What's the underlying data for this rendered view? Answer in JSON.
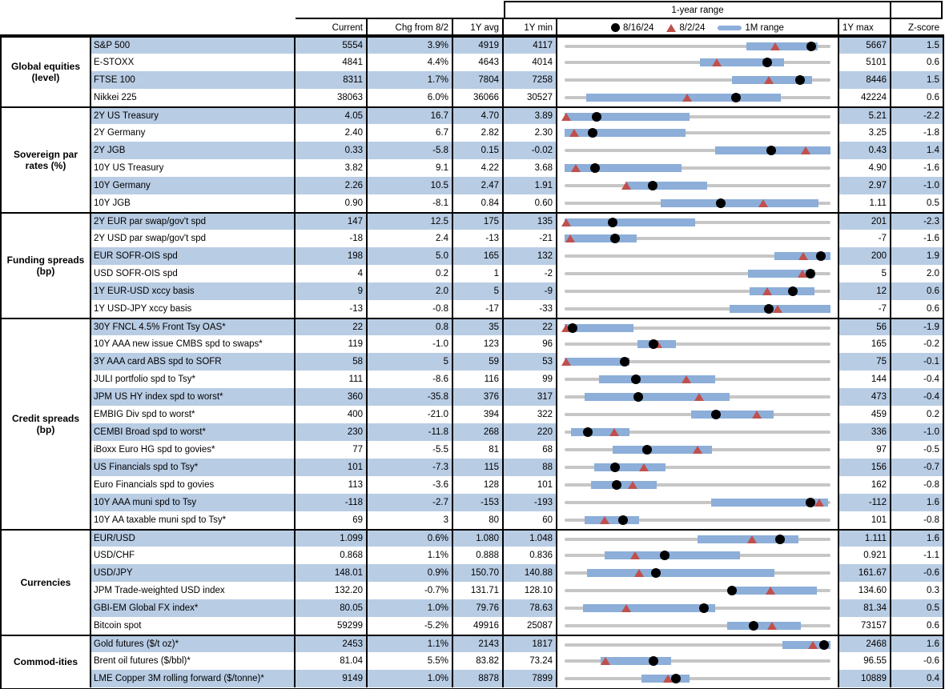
{
  "colors": {
    "row_shade": "#b8cce4",
    "bar": "#8caed9",
    "triangle": "#c0504d",
    "track": "#c6c6c6",
    "dot": "#000000",
    "border": "#000000"
  },
  "header": {
    "range_title": "1-year range",
    "current": "Current",
    "chg": "Chg from 8/2",
    "avg": "1Y avg",
    "min": "1Y min",
    "max": "1Y max",
    "z": "Z-score",
    "legend": {
      "dot": "8/16/24",
      "tri": "8/2/24",
      "bar": "1M range"
    }
  },
  "chart_data": {
    "type": "table",
    "title": "Market levels, spreads and 1-year ranges",
    "columns": [
      "Current",
      "Chg from 8/2",
      "1Y avg",
      "1Y min",
      "1-year range",
      "1Y max",
      "Z-score"
    ],
    "range_legend": [
      "8/16/24 (dot)",
      "8/2/24 (triangle)",
      "1M range (bar)"
    ],
    "sections": [
      {
        "label": "Global equities (level)",
        "rows": [
          {
            "name": "S&P 500",
            "current": "5554",
            "chg": "3.9%",
            "avg": "4919",
            "min": "4117",
            "max": "5667",
            "z": "1.5",
            "range": {
              "bar": [
                0.685,
                0.953
              ],
              "tri": 0.792,
              "dot": 0.927
            }
          },
          {
            "name": "E-STOXX",
            "current": "4841",
            "chg": "4.4%",
            "avg": "4643",
            "min": "4014",
            "max": "5101",
            "z": "0.6",
            "range": {
              "bar": [
                0.51,
                0.825
              ],
              "tri": 0.573,
              "dot": 0.761
            }
          },
          {
            "name": "FTSE 100",
            "current": "8311",
            "chg": "1.7%",
            "avg": "7804",
            "min": "7258",
            "max": "8446",
            "z": "1.5",
            "range": {
              "bar": [
                0.63,
                0.93
              ],
              "tri": 0.769,
              "dot": 0.886
            }
          },
          {
            "name": "Nikkei 225",
            "current": "38063",
            "chg": "6.0%",
            "avg": "36066",
            "min": "30527",
            "max": "42224",
            "z": "0.6",
            "range": {
              "bar": [
                0.08,
                0.813
              ],
              "tri": 0.46,
              "dot": 0.644
            }
          }
        ]
      },
      {
        "label": "Sovereign par rates (%)",
        "rows": [
          {
            "name": "2Y US Treasury",
            "current": "4.05",
            "chg": "16.7",
            "avg": "4.70",
            "min": "3.89",
            "max": "5.21",
            "z": "-2.2",
            "range": {
              "bar": [
                0.0,
                0.47
              ],
              "tri": 0.005,
              "dot": 0.121
            }
          },
          {
            "name": "2Y Germany",
            "current": "2.40",
            "chg": "6.7",
            "avg": "2.82",
            "min": "2.30",
            "max": "3.25",
            "z": "-1.8",
            "range": {
              "bar": [
                0.0,
                0.455
              ],
              "tri": 0.035,
              "dot": 0.105
            }
          },
          {
            "name": "2Y JGB",
            "current": "0.33",
            "chg": "-5.8",
            "avg": "0.15",
            "min": "-0.02",
            "max": "0.43",
            "z": "1.4",
            "range": {
              "bar": [
                0.565,
                1.0
              ],
              "tri": 0.907,
              "dot": 0.778
            }
          },
          {
            "name": "10Y US Treasury",
            "current": "3.82",
            "chg": "9.1",
            "avg": "4.22",
            "min": "3.68",
            "max": "4.90",
            "z": "-1.6",
            "range": {
              "bar": [
                0.0,
                0.44
              ],
              "tri": 0.041,
              "dot": 0.115
            }
          },
          {
            "name": "10Y Germany",
            "current": "2.26",
            "chg": "10.5",
            "avg": "2.47",
            "min": "1.91",
            "max": "2.97",
            "z": "-1.0",
            "range": {
              "bar": [
                0.23,
                0.535
              ],
              "tri": 0.231,
              "dot": 0.33
            }
          },
          {
            "name": "10Y JGB",
            "current": "0.90",
            "chg": "-8.1",
            "avg": "0.84",
            "min": "0.60",
            "max": "1.11",
            "z": "0.5",
            "range": {
              "bar": [
                0.36,
                0.955
              ],
              "tri": 0.747,
              "dot": 0.588
            }
          }
        ]
      },
      {
        "label": "Funding spreads (bp)",
        "rows": [
          {
            "name": "2Y EUR par swap/gov't spd",
            "current": "147",
            "chg": "12.5",
            "avg": "175",
            "min": "135",
            "max": "201",
            "z": "-2.3",
            "range": {
              "bar": [
                0.0,
                0.49
              ],
              "tri": 0.005,
              "dot": 0.182
            }
          },
          {
            "name": "2Y USD par swap/gov't spd",
            "current": "-18",
            "chg": "2.4",
            "avg": "-13",
            "min": "-21",
            "max": "-7",
            "z": "-1.6",
            "range": {
              "bar": [
                0.0,
                0.27
              ],
              "tri": 0.02,
              "dot": 0.19
            }
          },
          {
            "name": "EUR SOFR-OIS spd",
            "current": "198",
            "chg": "5.0",
            "avg": "165",
            "min": "132",
            "max": "200",
            "z": "1.9",
            "range": {
              "bar": [
                0.79,
                1.0
              ],
              "tri": 0.897,
              "dot": 0.965
            }
          },
          {
            "name": "USD SOFR-OIS spd",
            "current": "4",
            "chg": "0.2",
            "avg": "1",
            "min": "-2",
            "max": "5",
            "z": "2.0",
            "range": {
              "bar": [
                0.69,
                0.94
              ],
              "tri": 0.895,
              "dot": 0.925
            }
          },
          {
            "name": "1Y EUR-USD xccy basis",
            "current": "9",
            "chg": "2.0",
            "avg": "5",
            "min": "-9",
            "max": "12",
            "z": "0.6",
            "range": {
              "bar": [
                0.695,
                0.94
              ],
              "tri": 0.762,
              "dot": 0.857
            }
          },
          {
            "name": "1Y USD-JPY xccy basis",
            "current": "-13",
            "chg": "-0.8",
            "avg": "-17",
            "min": "-33",
            "max": "-7",
            "z": "0.6",
            "range": {
              "bar": [
                0.62,
                1.0
              ],
              "tri": 0.8,
              "dot": 0.769
            }
          }
        ]
      },
      {
        "label": "Credit spreads (bp)",
        "rows": [
          {
            "name": "30Y FNCL 4.5% Front Tsy OAS*",
            "current": "22",
            "chg": "0.8",
            "avg": "35",
            "min": "22",
            "max": "56",
            "z": "-1.9",
            "range": {
              "bar": [
                0.0,
                0.26
              ],
              "tri": 0.005,
              "dot": 0.03
            }
          },
          {
            "name": "10Y AAA new issue CMBS spd to swaps*",
            "current": "119",
            "chg": "-1.0",
            "avg": "123",
            "min": "96",
            "max": "165",
            "z": "-0.2",
            "range": {
              "bar": [
                0.275,
                0.42
              ],
              "tri": 0.348,
              "dot": 0.333
            }
          },
          {
            "name": "3Y AAA card ABS spd to SOFR",
            "current": "58",
            "chg": "5",
            "avg": "59",
            "min": "53",
            "max": "75",
            "z": "-0.1",
            "range": {
              "bar": [
                0.0,
                0.245
              ],
              "tri": 0.005,
              "dot": 0.227
            }
          },
          {
            "name": "JULI portfolio spd to Tsy*",
            "current": "111",
            "chg": "-8.6",
            "avg": "116",
            "min": "99",
            "max": "144",
            "z": "-0.4",
            "range": {
              "bar": [
                0.13,
                0.565
              ],
              "tri": 0.458,
              "dot": 0.267
            }
          },
          {
            "name": "JPM US HY index spd to worst*",
            "current": "360",
            "chg": "-35.8",
            "avg": "376",
            "min": "317",
            "max": "473",
            "z": "-0.4",
            "range": {
              "bar": [
                0.075,
                0.62
              ],
              "tri": 0.505,
              "dot": 0.276
            }
          },
          {
            "name": "EMBIG Div spd to worst*",
            "current": "400",
            "chg": "-21.0",
            "avg": "394",
            "min": "322",
            "max": "459",
            "z": "0.2",
            "range": {
              "bar": [
                0.475,
                0.785
              ],
              "tri": 0.723,
              "dot": 0.569
            }
          },
          {
            "name": "CEMBI Broad spd to worst*",
            "current": "230",
            "chg": "-11.8",
            "avg": "268",
            "min": "220",
            "max": "336",
            "z": "-1.0",
            "range": {
              "bar": [
                0.025,
                0.245
              ],
              "tri": 0.188,
              "dot": 0.086
            }
          },
          {
            "name": "iBoxx Euro HG spd to govies*",
            "current": "77",
            "chg": "-5.5",
            "avg": "81",
            "min": "68",
            "max": "97",
            "z": "-0.5",
            "range": {
              "bar": [
                0.18,
                0.555
              ],
              "tri": 0.5,
              "dot": 0.31
            }
          },
          {
            "name": "US Financials spd to Tsy*",
            "current": "101",
            "chg": "-7.3",
            "avg": "115",
            "min": "88",
            "max": "156",
            "z": "-0.7",
            "range": {
              "bar": [
                0.11,
                0.38
              ],
              "tri": 0.298,
              "dot": 0.191
            }
          },
          {
            "name": "Euro Financials spd to govies",
            "current": "113",
            "chg": "-3.6",
            "avg": "128",
            "min": "101",
            "max": "162",
            "z": "-0.8",
            "range": {
              "bar": [
                0.1,
                0.345
              ],
              "tri": 0.256,
              "dot": 0.197
            }
          },
          {
            "name": "10Y AAA muni spd to Tsy",
            "current": "-118",
            "chg": "-2.7",
            "avg": "-153",
            "min": "-193",
            "max": "-112",
            "z": "1.6",
            "range": {
              "bar": [
                0.55,
                0.99
              ],
              "tri": 0.959,
              "dot": 0.926
            }
          },
          {
            "name": "10Y AA taxable muni spd to Tsy*",
            "current": "69",
            "chg": "3",
            "avg": "80",
            "min": "60",
            "max": "101",
            "z": "-0.8",
            "range": {
              "bar": [
                0.075,
                0.28
              ],
              "tri": 0.15,
              "dot": 0.22
            }
          }
        ]
      },
      {
        "label": "Currencies",
        "rows": [
          {
            "name": "EUR/USD",
            "current": "1.099",
            "chg": "0.6%",
            "avg": "1.080",
            "min": "1.048",
            "max": "1.111",
            "z": "1.6",
            "range": {
              "bar": [
                0.5,
                0.88
              ],
              "tri": 0.705,
              "dot": 0.81
            }
          },
          {
            "name": "USD/CHF",
            "current": "0.868",
            "chg": "1.1%",
            "avg": "0.888",
            "min": "0.836",
            "max": "0.921",
            "z": "-1.1",
            "range": {
              "bar": [
                0.15,
                0.66
              ],
              "tri": 0.266,
              "dot": 0.376
            }
          },
          {
            "name": "USD/JPY",
            "current": "148.01",
            "chg": "0.9%",
            "avg": "150.70",
            "min": "140.88",
            "max": "161.67",
            "z": "-0.6",
            "range": {
              "bar": [
                0.085,
                0.79
              ],
              "tri": 0.279,
              "dot": 0.343
            }
          },
          {
            "name": "JPM Trade-weighted USD index",
            "current": "132.20",
            "chg": "-0.7%",
            "avg": "131.71",
            "min": "128.10",
            "max": "134.60",
            "z": "0.3",
            "range": {
              "bar": [
                0.64,
                0.95
              ],
              "tri": 0.774,
              "dot": 0.631
            }
          },
          {
            "name": "GBI-EM Global FX index*",
            "current": "80.05",
            "chg": "1.0%",
            "avg": "79.76",
            "min": "78.63",
            "max": "81.34",
            "z": "0.5",
            "range": {
              "bar": [
                0.07,
                0.565
              ],
              "tri": 0.232,
              "dot": 0.524
            }
          },
          {
            "name": "Bitcoin spot",
            "current": "59299",
            "chg": "-5.2%",
            "avg": "49916",
            "min": "25087",
            "max": "73157",
            "z": "0.6",
            "range": {
              "bar": [
                0.61,
                0.89
              ],
              "tri": 0.779,
              "dot": 0.712
            }
          }
        ]
      },
      {
        "label": "Commod-ities",
        "rows": [
          {
            "name": "Gold futures ($/t oz)*",
            "current": "2453",
            "chg": "1.1%",
            "avg": "2143",
            "min": "1817",
            "max": "2468",
            "z": "1.6",
            "range": {
              "bar": [
                0.82,
                1.0
              ],
              "tri": 0.935,
              "dot": 0.977
            }
          },
          {
            "name": "Brent oil futures ($/bbl)*",
            "current": "81.04",
            "chg": "5.5%",
            "avg": "83.82",
            "min": "73.24",
            "max": "96.55",
            "z": "-0.6",
            "range": {
              "bar": [
                0.135,
                0.4
              ],
              "tri": 0.154,
              "dot": 0.335
            }
          },
          {
            "name": "LME Copper 3M rolling forward ($/tonne)*",
            "current": "9149",
            "chg": "1.0%",
            "avg": "8878",
            "min": "7899",
            "max": "10889",
            "z": "0.4",
            "range": {
              "bar": [
                0.29,
                0.47
              ],
              "tri": 0.388,
              "dot": 0.418
            }
          }
        ]
      }
    ]
  }
}
